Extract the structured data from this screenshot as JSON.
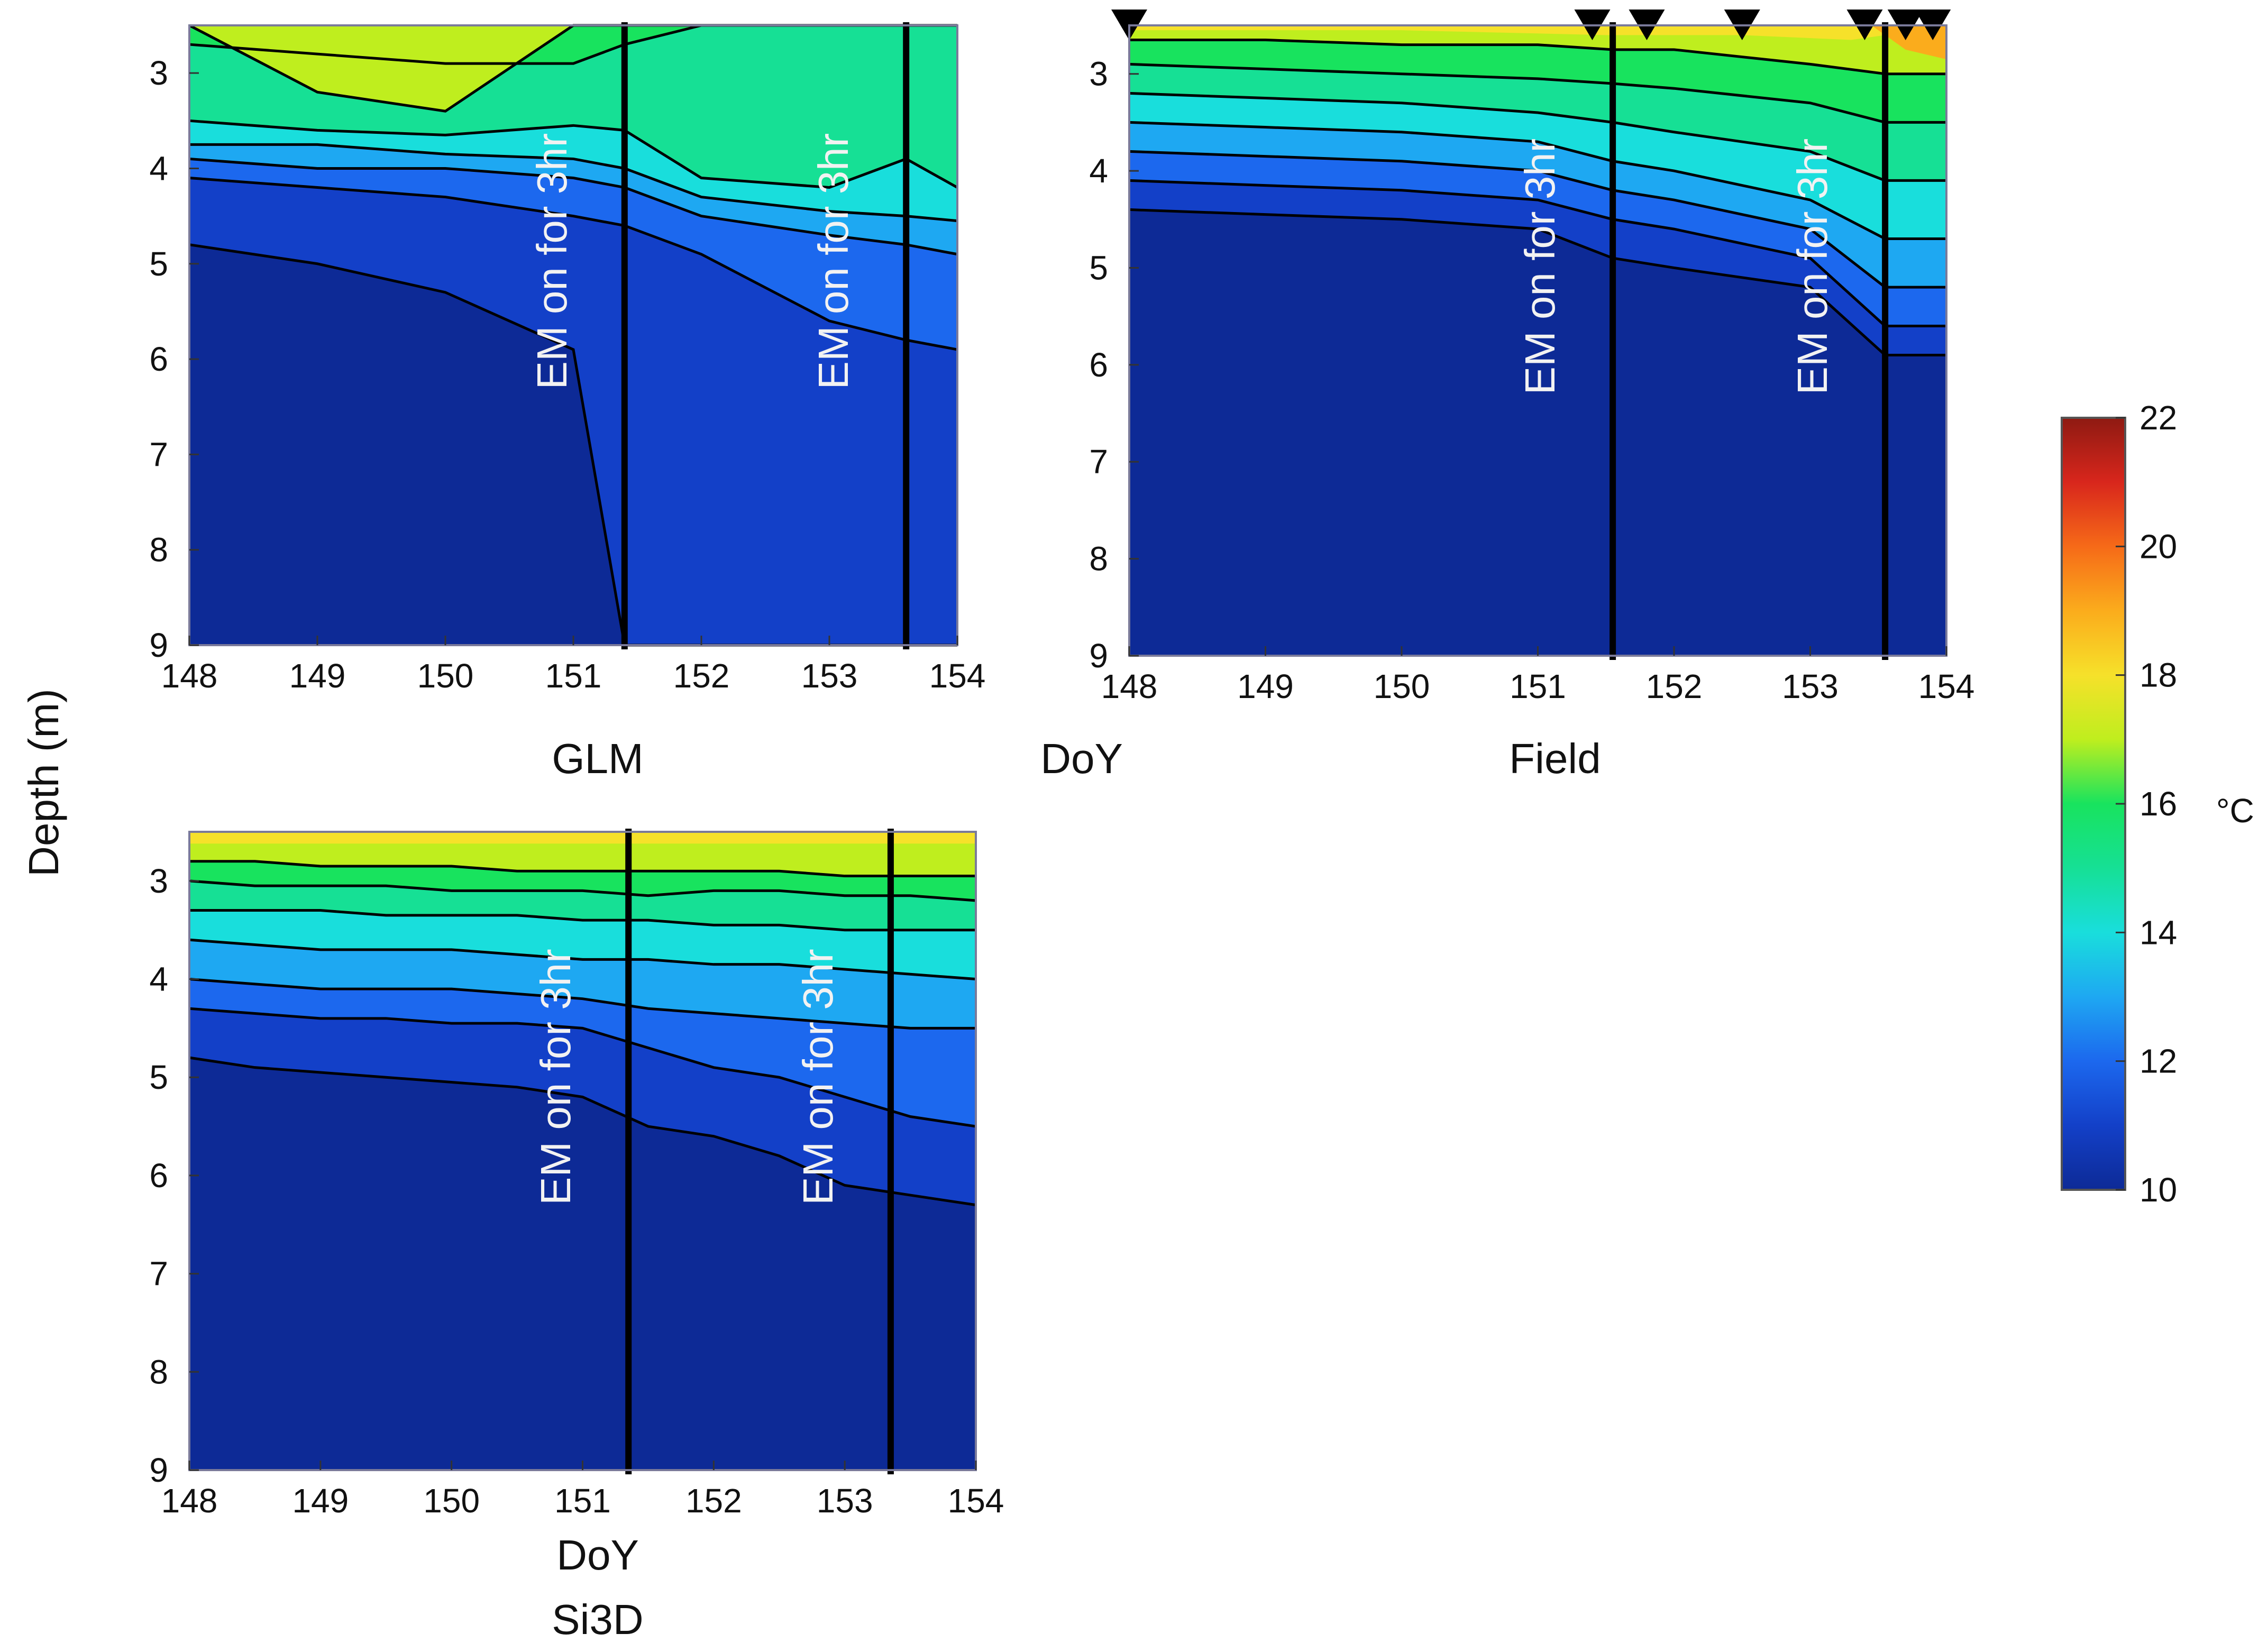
{
  "figure": {
    "ylabel": "Depth (m)",
    "shared_xlabel": "DoY",
    "colorbar": {
      "unit": "°C",
      "ticks": [
        22,
        20,
        18,
        16,
        14,
        12,
        10
      ],
      "range": [
        10,
        22
      ]
    },
    "colors": {
      "c10": "#0d2a96",
      "c11": "#1340c8",
      "c12": "#1c68ee",
      "c13": "#1ea8f2",
      "c14": "#19dedc",
      "c15": "#16e095",
      "c16": "#18e35e",
      "c17": "#bfee1e",
      "c18": "#f6e12a",
      "c19": "#fbac1c",
      "c20": "#f66a18",
      "c21": "#d8261c",
      "c22": "#8e1a12"
    }
  },
  "chart_data": [
    {
      "type": "contour",
      "title": "GLM",
      "xlabel": "",
      "ylabel": "Depth (m)",
      "xlim": [
        148,
        154
      ],
      "ylim": [
        9,
        2.5
      ],
      "xticks": [
        148,
        149,
        150,
        151,
        152,
        153,
        154
      ],
      "yticks": [
        3,
        4,
        5,
        6,
        7,
        8,
        9
      ],
      "z_unit": "°C",
      "annotations": [
        {
          "x": 151.4,
          "text": "EM on for 3hr"
        },
        {
          "x": 153.6,
          "text": "EM on for 3hr"
        }
      ],
      "isotherm_depths": {
        "x": [
          148,
          149,
          150,
          151,
          151.4,
          152,
          153,
          153.6,
          154
        ],
        "t11": [
          4.8,
          5.0,
          5.3,
          5.9,
          9.0,
          9.0,
          9.0,
          9.0,
          9.0
        ],
        "t12": [
          4.1,
          4.2,
          4.3,
          4.5,
          4.6,
          4.9,
          5.6,
          5.8,
          5.9
        ],
        "t13": [
          3.9,
          4.0,
          4.0,
          4.1,
          4.2,
          4.5,
          4.7,
          4.8,
          4.9
        ],
        "t14": [
          3.75,
          3.75,
          3.85,
          3.9,
          4.0,
          4.3,
          4.45,
          4.5,
          4.55
        ],
        "t15": [
          3.5,
          3.6,
          3.65,
          3.55,
          3.6,
          4.1,
          4.2,
          3.9,
          4.2
        ],
        "t16": [
          2.7,
          2.8,
          2.9,
          2.9,
          2.7,
          2.5,
          2.5,
          2.5,
          2.5
        ],
        "t17": [
          2.5,
          3.2,
          3.4,
          2.5,
          2.5,
          2.5,
          2.5,
          2.5,
          2.5
        ]
      }
    },
    {
      "type": "contour",
      "title": "Field",
      "xlabel": "DoY",
      "ylabel": "Depth (m)",
      "xlim": [
        148,
        154
      ],
      "ylim": [
        9,
        2.5
      ],
      "xticks": [
        148,
        149,
        150,
        151,
        152,
        153,
        154
      ],
      "yticks": [
        3,
        4,
        5,
        6,
        7,
        8,
        9
      ],
      "z_unit": "°C",
      "sample_marker_days": [
        148.0,
        151.4,
        151.8,
        152.5,
        153.4,
        153.7,
        153.9
      ],
      "annotations": [
        {
          "x": 151.55,
          "text": "EM on for 3hr"
        },
        {
          "x": 153.55,
          "text": "EM on for 3hr"
        }
      ],
      "isotherm_depths": {
        "x": [
          148,
          149,
          150,
          151,
          151.55,
          152,
          153,
          153.55,
          154
        ],
        "t11": [
          4.4,
          4.45,
          4.5,
          4.6,
          4.9,
          5.0,
          5.2,
          5.9,
          5.9
        ],
        "t12": [
          4.1,
          4.15,
          4.2,
          4.3,
          4.5,
          4.6,
          4.9,
          5.6,
          5.6
        ],
        "t13": [
          3.8,
          3.85,
          3.9,
          4.0,
          4.2,
          4.3,
          4.6,
          5.2,
          5.2
        ],
        "t14": [
          3.5,
          3.55,
          3.6,
          3.7,
          3.9,
          4.0,
          4.3,
          4.7,
          4.7
        ],
        "t15": [
          3.2,
          3.25,
          3.3,
          3.4,
          3.5,
          3.6,
          3.8,
          4.1,
          4.1
        ],
        "t16": [
          2.9,
          2.95,
          3.0,
          3.05,
          3.1,
          3.15,
          3.3,
          3.5,
          3.5
        ],
        "t17": [
          2.65,
          2.65,
          2.7,
          2.7,
          2.75,
          2.75,
          2.9,
          3.0,
          3.0
        ]
      }
    },
    {
      "type": "contour",
      "title": "Si3D",
      "xlabel": "DoY",
      "ylabel": "Depth (m)",
      "xlim": [
        148,
        154
      ],
      "ylim": [
        9,
        2.5
      ],
      "xticks": [
        148,
        149,
        150,
        151,
        152,
        153,
        154
      ],
      "yticks": [
        3,
        4,
        5,
        6,
        7,
        8,
        9
      ],
      "z_unit": "°C",
      "annotations": [
        {
          "x": 151.35,
          "text": "EM on for 3hr"
        },
        {
          "x": 153.35,
          "text": "EM on for 3hr"
        }
      ],
      "isotherm_depths": {
        "x": [
          148,
          148.5,
          149,
          149.5,
          150,
          150.5,
          151,
          151.5,
          152,
          152.5,
          153,
          153.5,
          154
        ],
        "t11": [
          4.8,
          4.9,
          4.95,
          5.0,
          5.05,
          5.1,
          5.2,
          5.5,
          5.6,
          5.8,
          6.1,
          6.2,
          6.3
        ],
        "t12": [
          4.3,
          4.35,
          4.4,
          4.4,
          4.45,
          4.45,
          4.5,
          4.7,
          4.9,
          5.0,
          5.2,
          5.4,
          5.5
        ],
        "t13": [
          4.0,
          4.05,
          4.1,
          4.1,
          4.1,
          4.15,
          4.2,
          4.3,
          4.35,
          4.4,
          4.45,
          4.5,
          4.5
        ],
        "t14": [
          3.6,
          3.65,
          3.7,
          3.7,
          3.7,
          3.75,
          3.8,
          3.8,
          3.85,
          3.85,
          3.9,
          3.95,
          4.0
        ],
        "t15": [
          3.3,
          3.3,
          3.3,
          3.35,
          3.35,
          3.35,
          3.4,
          3.4,
          3.45,
          3.45,
          3.5,
          3.5,
          3.5
        ],
        "t16": [
          3.0,
          3.05,
          3.05,
          3.05,
          3.1,
          3.1,
          3.1,
          3.15,
          3.1,
          3.1,
          3.15,
          3.15,
          3.2
        ],
        "t17": [
          2.8,
          2.8,
          2.85,
          2.85,
          2.85,
          2.9,
          2.9,
          2.9,
          2.9,
          2.9,
          2.95,
          2.95,
          2.95
        ]
      }
    }
  ]
}
